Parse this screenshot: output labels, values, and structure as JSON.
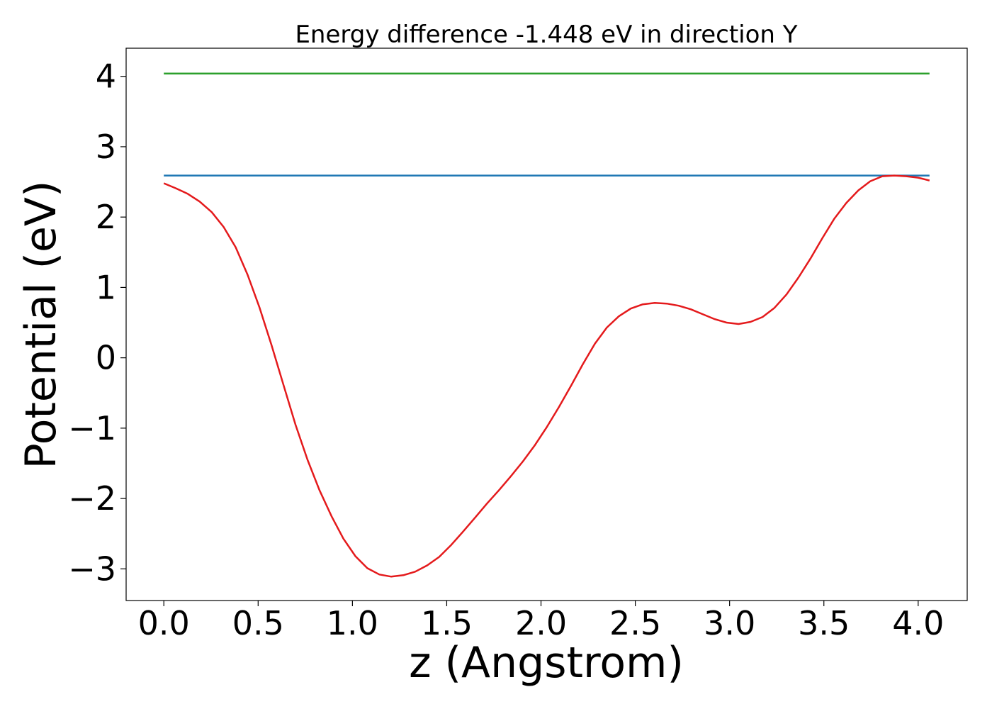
{
  "chart_data": {
    "type": "line",
    "title": "Energy difference -1.448 eV in direction Y",
    "xlabel": "z (Angstrom)",
    "ylabel": "Potential (eV)",
    "xlim": [
      -0.2,
      4.26
    ],
    "ylim": [
      -3.45,
      4.4
    ],
    "xticks": [
      0.0,
      0.5,
      1.0,
      1.5,
      2.0,
      2.5,
      3.0,
      3.5,
      4.0
    ],
    "xtick_labels": [
      "0.0",
      "0.5",
      "1.0",
      "1.5",
      "2.0",
      "2.5",
      "3.0",
      "3.5",
      "4.0"
    ],
    "yticks": [
      -3,
      -2,
      -1,
      0,
      1,
      2,
      3,
      4
    ],
    "ytick_labels": [
      "−3",
      "−2",
      "−1",
      "0",
      "1",
      "2",
      "3",
      "4"
    ],
    "grid": false,
    "series": [
      {
        "color": "#2ca02c",
        "x": [
          0.0,
          4.06
        ],
        "y": [
          4.04,
          4.04
        ]
      },
      {
        "color": "#1f77b4",
        "x": [
          0.0,
          4.06
        ],
        "y": [
          2.59,
          2.59
        ]
      },
      {
        "color": "#e41a1c",
        "x": [
          0.0,
          0.063,
          0.127,
          0.19,
          0.254,
          0.317,
          0.381,
          0.444,
          0.508,
          0.571,
          0.635,
          0.698,
          0.762,
          0.825,
          0.889,
          0.952,
          1.016,
          1.079,
          1.143,
          1.206,
          1.27,
          1.333,
          1.397,
          1.46,
          1.524,
          1.587,
          1.651,
          1.714,
          1.778,
          1.841,
          1.905,
          1.968,
          2.032,
          2.095,
          2.159,
          2.222,
          2.286,
          2.349,
          2.413,
          2.476,
          2.54,
          2.603,
          2.667,
          2.73,
          2.794,
          2.857,
          2.921,
          2.984,
          3.048,
          3.111,
          3.175,
          3.238,
          3.302,
          3.365,
          3.429,
          3.492,
          3.556,
          3.619,
          3.683,
          3.746,
          3.81,
          3.873,
          3.937,
          4.0,
          4.06
        ],
        "y": [
          2.48,
          2.41,
          2.33,
          2.22,
          2.07,
          1.86,
          1.57,
          1.18,
          0.71,
          0.18,
          -0.39,
          -0.95,
          -1.45,
          -1.88,
          -2.25,
          -2.57,
          -2.82,
          -2.99,
          -3.08,
          -3.11,
          -3.09,
          -3.04,
          -2.95,
          -2.83,
          -2.66,
          -2.47,
          -2.27,
          -2.07,
          -1.88,
          -1.68,
          -1.47,
          -1.24,
          -0.98,
          -0.7,
          -0.4,
          -0.09,
          0.2,
          0.43,
          0.59,
          0.7,
          0.76,
          0.78,
          0.77,
          0.74,
          0.69,
          0.62,
          0.55,
          0.5,
          0.48,
          0.51,
          0.58,
          0.71,
          0.9,
          1.14,
          1.41,
          1.7,
          1.98,
          2.2,
          2.38,
          2.51,
          2.58,
          2.59,
          2.58,
          2.56,
          2.52
        ]
      }
    ]
  }
}
